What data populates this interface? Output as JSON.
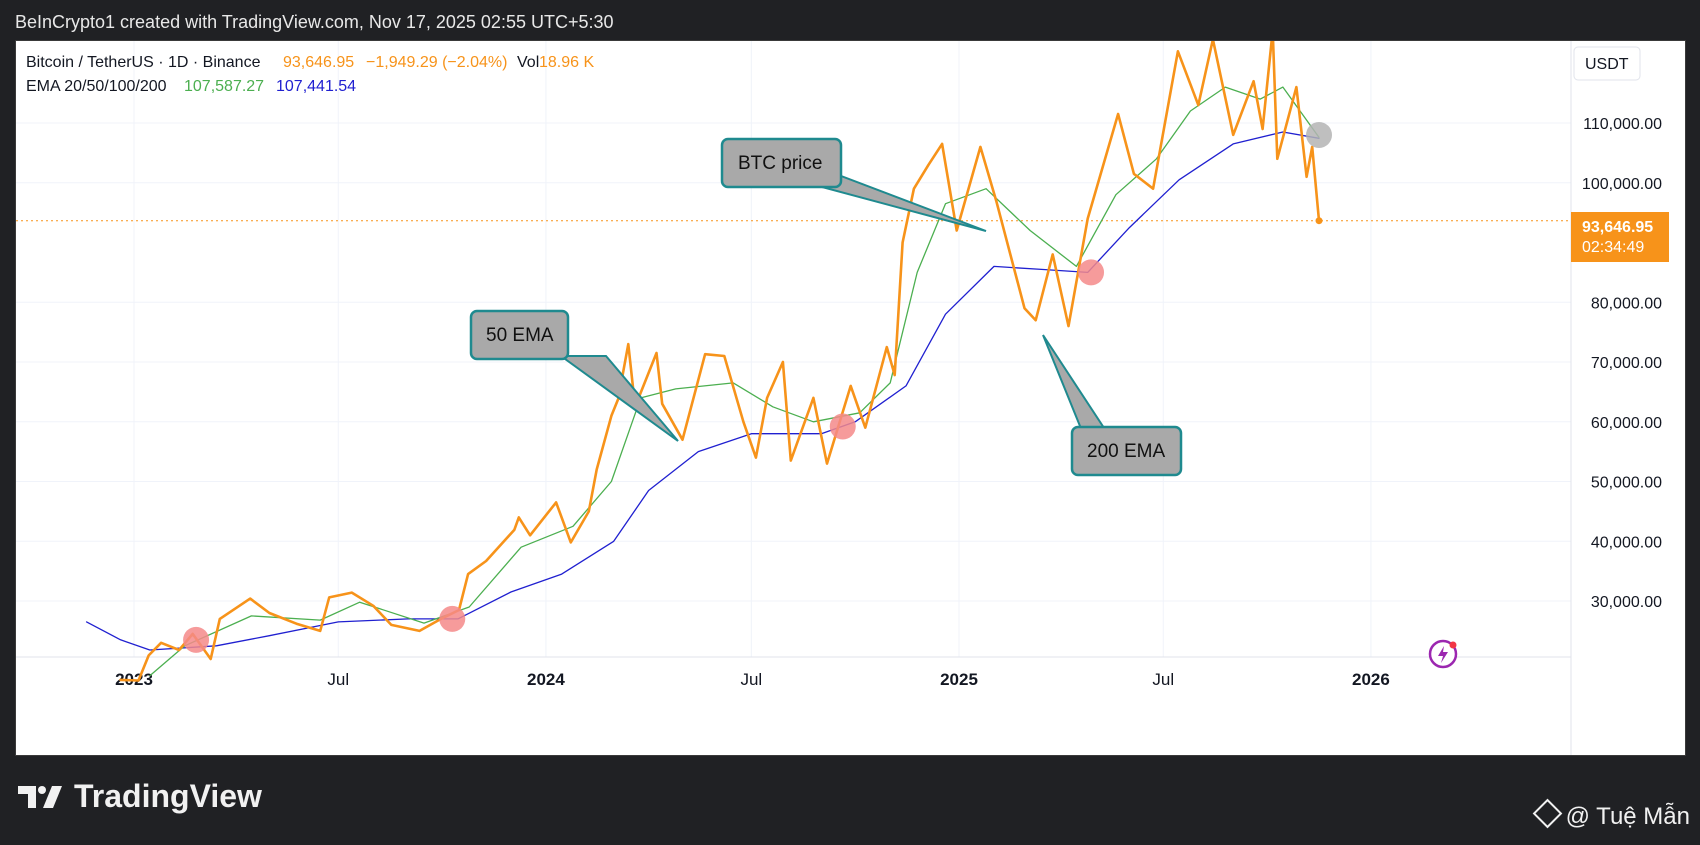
{
  "topbar": {
    "text": "BeInCrypto1 created with TradingView.com, Nov 17, 2025 02:55 UTC+5:30"
  },
  "legend": {
    "symbol": "Bitcoin / TetherUS · 1D · Binance",
    "price": "93,646.95",
    "change": "−1,949.29 (−2.04%)",
    "vol_label": "Vol",
    "vol_value": "18.96 K",
    "ema_label": "EMA 20/50/100/200",
    "ema_value_1": "107,587.27",
    "ema_value_2": "107,441.54"
  },
  "currency": "USDT",
  "price_tag": {
    "price": "93,646.95",
    "countdown": "02:34:49"
  },
  "annotations": {
    "btc_price": "BTC price",
    "ema50": "50 EMA",
    "ema200": "200 EMA"
  },
  "footer": {
    "logo": "TradingView",
    "credit": "@ Tuệ Mẫn"
  },
  "colors": {
    "price": "#f7931a",
    "ema50": "#4caf50",
    "ema200": "#2020d0",
    "marker": "#f48a8a",
    "marker_last": "#b4b4b4",
    "callout_fill": "#a9a9a9",
    "callout_border": "#1f8a8f"
  },
  "chart_data": {
    "type": "line",
    "title": "",
    "y_ticks": [
      30000,
      40000,
      50000,
      60000,
      70000,
      80000,
      100000,
      110000
    ],
    "y_tick_labels": [
      "30,000.00",
      "40,000.00",
      "50,000.00",
      "60,000.00",
      "70,000.00",
      "80,000.00",
      "100,000.00",
      "110,000.00"
    ],
    "x_ticks": [
      "2023-01-01",
      "2023-07-01",
      "2024-01-01",
      "2024-07-01",
      "2025-01-01",
      "2025-07-01",
      "2026-01-01"
    ],
    "x_tick_labels": [
      "2023",
      "Jul",
      "2024",
      "Jul",
      "2025",
      "Jul",
      "2026"
    ],
    "series": [
      {
        "name": "BTC price",
        "points": [
          [
            "2022-12-20",
            16800
          ],
          [
            "2023-01-05",
            16700
          ],
          [
            "2023-01-14",
            20900
          ],
          [
            "2023-01-25",
            23000
          ],
          [
            "2023-02-10",
            21800
          ],
          [
            "2023-02-22",
            24500
          ],
          [
            "2023-03-10",
            20300
          ],
          [
            "2023-03-18",
            27000
          ],
          [
            "2023-04-14",
            30400
          ],
          [
            "2023-05-01",
            28000
          ],
          [
            "2023-05-25",
            26200
          ],
          [
            "2023-06-15",
            25000
          ],
          [
            "2023-06-23",
            30600
          ],
          [
            "2023-07-13",
            31400
          ],
          [
            "2023-08-01",
            29200
          ],
          [
            "2023-08-17",
            26000
          ],
          [
            "2023-09-11",
            25000
          ],
          [
            "2023-09-30",
            27000
          ],
          [
            "2023-10-16",
            28500
          ],
          [
            "2023-10-24",
            34500
          ],
          [
            "2023-11-09",
            36700
          ],
          [
            "2023-12-04",
            41900
          ],
          [
            "2023-12-08",
            44000
          ],
          [
            "2023-12-18",
            41000
          ],
          [
            "2024-01-10",
            46500
          ],
          [
            "2024-01-23",
            39800
          ],
          [
            "2024-02-08",
            45000
          ],
          [
            "2024-02-15",
            52000
          ],
          [
            "2024-02-28",
            61000
          ],
          [
            "2024-03-05",
            63800
          ],
          [
            "2024-03-14",
            73000
          ],
          [
            "2024-03-20",
            62500
          ],
          [
            "2024-04-08",
            71500
          ],
          [
            "2024-04-13",
            63000
          ],
          [
            "2024-05-01",
            57000
          ],
          [
            "2024-05-21",
            71300
          ],
          [
            "2024-06-07",
            71000
          ],
          [
            "2024-06-24",
            60000
          ],
          [
            "2024-07-05",
            54000
          ],
          [
            "2024-07-15",
            64000
          ],
          [
            "2024-07-29",
            70000
          ],
          [
            "2024-08-05",
            53500
          ],
          [
            "2024-08-25",
            64000
          ],
          [
            "2024-09-06",
            53000
          ],
          [
            "2024-09-27",
            66000
          ],
          [
            "2024-10-10",
            59000
          ],
          [
            "2024-10-29",
            72500
          ],
          [
            "2024-11-05",
            67800
          ],
          [
            "2024-11-12",
            90000
          ],
          [
            "2024-11-22",
            99000
          ],
          [
            "2024-12-05",
            103000
          ],
          [
            "2024-12-17",
            106500
          ],
          [
            "2024-12-30",
            92000
          ],
          [
            "2025-01-20",
            106000
          ],
          [
            "2025-02-03",
            97000
          ],
          [
            "2025-02-28",
            79000
          ],
          [
            "2025-03-10",
            77000
          ],
          [
            "2025-03-25",
            88000
          ],
          [
            "2025-04-08",
            76000
          ],
          [
            "2025-04-25",
            94000
          ],
          [
            "2025-05-22",
            111500
          ],
          [
            "2025-06-05",
            101500
          ],
          [
            "2025-06-22",
            99000
          ],
          [
            "2025-07-14",
            122000
          ],
          [
            "2025-08-01",
            113000
          ],
          [
            "2025-08-14",
            124000
          ],
          [
            "2025-09-01",
            108000
          ],
          [
            "2025-09-19",
            117000
          ],
          [
            "2025-09-27",
            109000
          ],
          [
            "2025-10-06",
            125500
          ],
          [
            "2025-10-10",
            104000
          ],
          [
            "2025-10-27",
            116000
          ],
          [
            "2025-11-05",
            101000
          ],
          [
            "2025-11-10",
            106000
          ],
          [
            "2025-11-16",
            93646.95
          ]
        ]
      },
      {
        "name": "",
        "points": [
          [
            "2023-01-15",
            17500
          ],
          [
            "2023-02-15",
            22500
          ],
          [
            "2023-04-15",
            27500
          ],
          [
            "2023-06-15",
            26800
          ],
          [
            "2023-07-20",
            29800
          ],
          [
            "2023-09-15",
            26300
          ],
          [
            "2023-10-25",
            29000
          ],
          [
            "2023-12-10",
            39000
          ],
          [
            "2024-01-25",
            42500
          ],
          [
            "2024-02-28",
            50000
          ],
          [
            "2024-03-25",
            64000
          ],
          [
            "2024-04-25",
            65500
          ],
          [
            "2024-06-15",
            66500
          ],
          [
            "2024-07-20",
            62500
          ],
          [
            "2024-08-25",
            60000
          ],
          [
            "2024-10-05",
            61500
          ],
          [
            "2024-11-01",
            66500
          ],
          [
            "2024-11-25",
            85000
          ],
          [
            "2024-12-20",
            96500
          ],
          [
            "2025-01-25",
            99000
          ],
          [
            "2025-03-05",
            92000
          ],
          [
            "2025-04-15",
            86000
          ],
          [
            "2025-05-20",
            98000
          ],
          [
            "2025-06-25",
            104000
          ],
          [
            "2025-07-25",
            112000
          ],
          [
            "2025-08-25",
            116000
          ],
          [
            "2025-09-25",
            114000
          ],
          [
            "2025-10-15",
            116000
          ],
          [
            "2025-11-16",
            107587.27
          ]
        ]
      },
      {
        "name": "",
        "points": [
          [
            "2022-11-20",
            26500
          ],
          [
            "2022-12-20",
            23500
          ],
          [
            "2023-01-15",
            21800
          ],
          [
            "2023-03-15",
            22500
          ],
          [
            "2023-05-01",
            24200
          ],
          [
            "2023-07-01",
            26500
          ],
          [
            "2023-09-01",
            27000
          ],
          [
            "2023-10-15",
            27000
          ],
          [
            "2023-12-01",
            31500
          ],
          [
            "2024-01-15",
            34500
          ],
          [
            "2024-03-01",
            40000
          ],
          [
            "2024-04-01",
            48500
          ],
          [
            "2024-05-15",
            55000
          ],
          [
            "2024-07-01",
            58000
          ],
          [
            "2024-09-01",
            58000
          ],
          [
            "2024-10-01",
            60000
          ],
          [
            "2024-11-15",
            66000
          ],
          [
            "2024-12-20",
            78000
          ],
          [
            "2025-02-01",
            86000
          ],
          [
            "2025-03-15",
            85500
          ],
          [
            "2025-04-25",
            85000
          ],
          [
            "2025-06-01",
            92500
          ],
          [
            "2025-07-15",
            100500
          ],
          [
            "2025-09-01",
            106500
          ],
          [
            "2025-10-15",
            108500
          ],
          [
            "2025-11-16",
            107441.54
          ]
        ]
      }
    ],
    "events": [
      {
        "date": "2023-02-25",
        "value": 23500
      },
      {
        "date": "2023-10-10",
        "value": 27000
      },
      {
        "date": "2024-09-20",
        "value": 59200
      },
      {
        "date": "2025-04-28",
        "value": 85000
      },
      {
        "date": "2025-11-16",
        "value": 108000
      }
    ]
  }
}
